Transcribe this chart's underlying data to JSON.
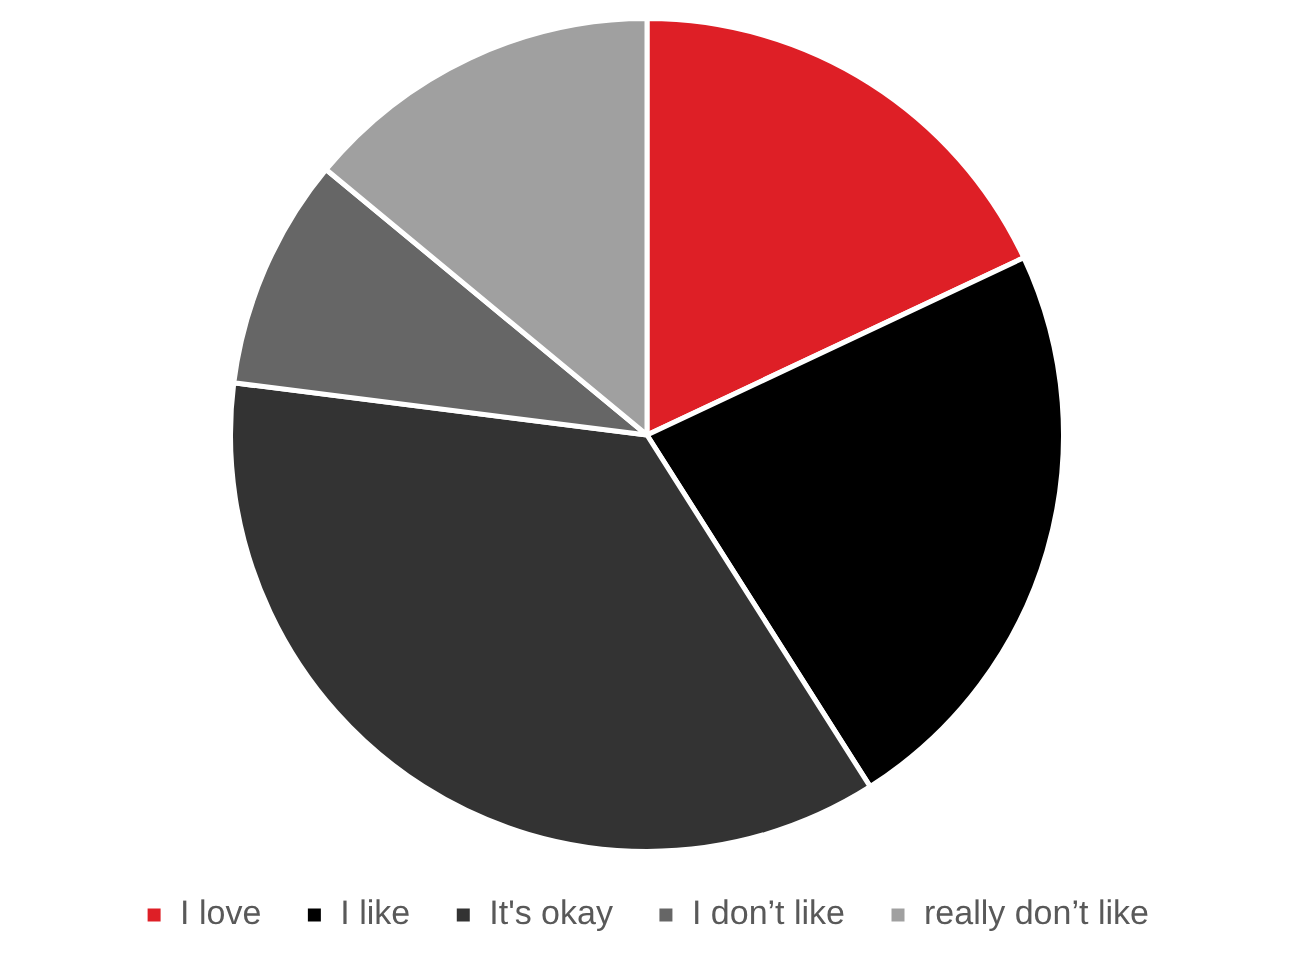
{
  "chart_data": {
    "type": "pie",
    "categories": [
      "I love",
      "I like",
      "It's okay",
      "I don’t like",
      "really don’t like"
    ],
    "values": [
      18,
      23,
      36,
      9,
      14
    ],
    "colors": [
      "#de1f26",
      "#000000",
      "#333333",
      "#666666",
      "#a0a0a0"
    ],
    "legend": "bottom"
  }
}
